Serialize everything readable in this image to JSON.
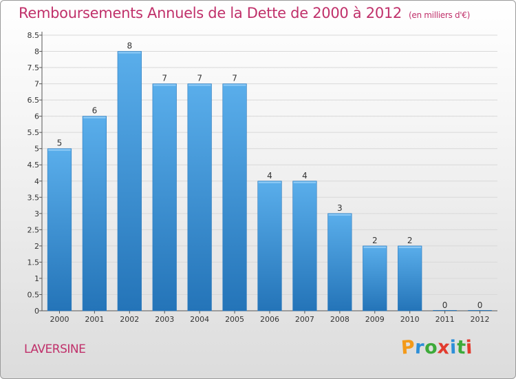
{
  "header": {
    "title": "Remboursements Annuels de la Dette de 2000 à 2012",
    "subtitle": "(en milliers d'€)"
  },
  "footer": {
    "commune": "LAVERSINE",
    "brand_letters": [
      "P",
      "r",
      "o",
      "x",
      "i",
      "t",
      "i"
    ],
    "brand_colors": [
      "#f39a1a",
      "#2d8fd8",
      "#3daa3a",
      "#e23b2e",
      "#2d8fd8",
      "#3daa3a",
      "#e23b2e"
    ]
  },
  "colors": {
    "accent": "#c0306a",
    "bar_top": "#5aaeeb",
    "bar_bottom": "#2474b8"
  },
  "chart_data": {
    "type": "bar",
    "categories": [
      "2000",
      "2001",
      "2002",
      "2003",
      "2004",
      "2005",
      "2006",
      "2007",
      "2008",
      "2009",
      "2010",
      "2011",
      "2012"
    ],
    "values": [
      5,
      6,
      8,
      7,
      7,
      7,
      4,
      4,
      3,
      2,
      2,
      0,
      0
    ],
    "data_labels": [
      "5",
      "6",
      "8",
      "7",
      "7",
      "7",
      "4",
      "4",
      "3",
      "2",
      "2",
      "0",
      "0"
    ],
    "title": "Remboursements Annuels de la Dette de 2000 à 2012",
    "subtitle": "(en milliers d'€)",
    "xlabel": "",
    "ylabel": "",
    "ylim": [
      0,
      8.5
    ],
    "y_ticks": [
      "0",
      "0.5",
      "1",
      "1.5",
      "2",
      "2.5",
      "3",
      "3.5",
      "4",
      "4.5",
      "5",
      "5.5",
      "6",
      "6.5",
      "7",
      "7.5",
      "8",
      "8.5"
    ],
    "grid": true
  }
}
